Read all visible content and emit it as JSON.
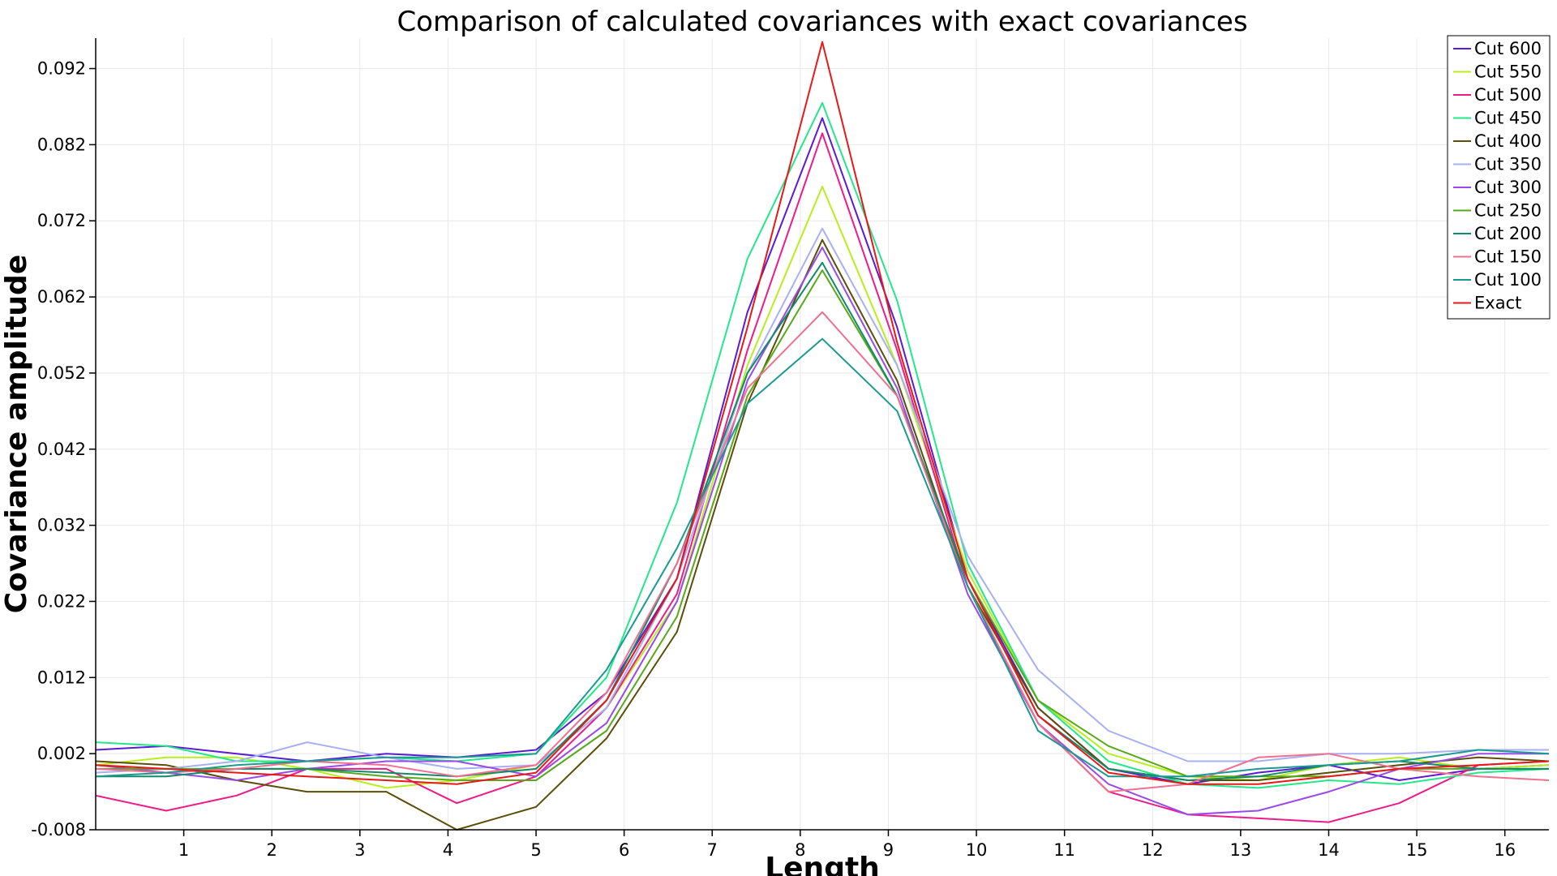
{
  "chart_data": {
    "type": "line",
    "title": "Comparison of calculated covariances with exact covariances",
    "xlabel": "Length",
    "ylabel": "Covariance amplitude",
    "xlim": [
      0,
      16.5
    ],
    "ylim": [
      -0.008,
      0.096
    ],
    "xticks": [
      1,
      2,
      3,
      4,
      5,
      6,
      7,
      8,
      9,
      10,
      11,
      12,
      13,
      14,
      15,
      16
    ],
    "yticks": [
      -0.008,
      0.002,
      0.012,
      0.022,
      0.032,
      0.042,
      0.052,
      0.062,
      0.072,
      0.082,
      0.092
    ],
    "ytick_labels": [
      "-0.008",
      "0.002",
      "0.012",
      "0.022",
      "0.032",
      "0.042",
      "0.052",
      "0.062",
      "0.072",
      "0.082",
      "0.092"
    ],
    "grid": true,
    "legend_position": "top-right",
    "series": [
      {
        "name": "Cut 600",
        "color": "#5a1ad6",
        "points": [
          [
            0,
            0.0025
          ],
          [
            0.8,
            0.003
          ],
          [
            1.6,
            0.002
          ],
          [
            2.4,
            0.001
          ],
          [
            3.3,
            0.002
          ],
          [
            4.1,
            0.0015
          ],
          [
            5.0,
            0.0025
          ],
          [
            5.8,
            0.01
          ],
          [
            6.6,
            0.025
          ],
          [
            7.4,
            0.06
          ],
          [
            8.25,
            0.0855
          ],
          [
            9.1,
            0.058
          ],
          [
            9.9,
            0.025
          ],
          [
            10.7,
            0.008
          ],
          [
            11.5,
            0.0
          ],
          [
            12.4,
            -0.002
          ],
          [
            13.2,
            -0.0005
          ],
          [
            14.0,
            0.0005
          ],
          [
            14.8,
            -0.0015
          ],
          [
            15.7,
            0.0
          ],
          [
            16.5,
            0.0005
          ]
        ]
      },
      {
        "name": "Cut 550",
        "color": "#b8ee1c",
        "points": [
          [
            0,
            0.0005
          ],
          [
            0.8,
            0.0015
          ],
          [
            1.6,
            0.0015
          ],
          [
            2.4,
            0.0
          ],
          [
            3.3,
            -0.0025
          ],
          [
            4.1,
            -0.0015
          ],
          [
            5.0,
            0.0005
          ],
          [
            5.8,
            0.008
          ],
          [
            6.6,
            0.022
          ],
          [
            7.4,
            0.053
          ],
          [
            8.25,
            0.0765
          ],
          [
            9.1,
            0.053
          ],
          [
            9.9,
            0.026
          ],
          [
            10.7,
            0.009
          ],
          [
            11.5,
            0.002
          ],
          [
            12.4,
            -0.001
          ],
          [
            13.2,
            -0.0015
          ],
          [
            14.0,
            0.0005
          ],
          [
            14.8,
            0.0015
          ],
          [
            15.7,
            0.0
          ],
          [
            16.5,
            0.0005
          ]
        ]
      },
      {
        "name": "Cut 500",
        "color": "#ee1a8a",
        "points": [
          [
            0,
            -0.0035
          ],
          [
            0.8,
            -0.0055
          ],
          [
            1.6,
            -0.0035
          ],
          [
            2.4,
            0.0
          ],
          [
            3.3,
            0.0
          ],
          [
            4.1,
            -0.0045
          ],
          [
            5.0,
            -0.001
          ],
          [
            5.8,
            0.008
          ],
          [
            6.6,
            0.023
          ],
          [
            7.4,
            0.055
          ],
          [
            8.25,
            0.0835
          ],
          [
            9.1,
            0.055
          ],
          [
            9.9,
            0.024
          ],
          [
            10.7,
            0.006
          ],
          [
            11.5,
            -0.003
          ],
          [
            12.4,
            -0.006
          ],
          [
            13.2,
            -0.0065
          ],
          [
            14.0,
            -0.007
          ],
          [
            14.8,
            -0.0045
          ],
          [
            15.7,
            0.0005
          ],
          [
            16.5,
            0.001
          ]
        ]
      },
      {
        "name": "Cut 450",
        "color": "#22e88a",
        "points": [
          [
            0,
            0.0035
          ],
          [
            0.8,
            0.003
          ],
          [
            1.6,
            0.001
          ],
          [
            2.4,
            0.001
          ],
          [
            3.3,
            0.0015
          ],
          [
            4.1,
            0.001
          ],
          [
            5.0,
            0.002
          ],
          [
            5.8,
            0.012
          ],
          [
            6.6,
            0.035
          ],
          [
            7.4,
            0.067
          ],
          [
            8.25,
            0.0875
          ],
          [
            9.1,
            0.0615
          ],
          [
            9.9,
            0.027
          ],
          [
            10.7,
            0.009
          ],
          [
            11.5,
            0.001
          ],
          [
            12.4,
            -0.002
          ],
          [
            13.2,
            -0.0025
          ],
          [
            14.0,
            -0.0015
          ],
          [
            14.8,
            -0.002
          ],
          [
            15.7,
            -0.0005
          ],
          [
            16.5,
            0.0
          ]
        ]
      },
      {
        "name": "Cut 400",
        "color": "#5a4e08",
        "points": [
          [
            0,
            0.001
          ],
          [
            0.8,
            0.0005
          ],
          [
            1.6,
            -0.0015
          ],
          [
            2.4,
            -0.003
          ],
          [
            3.3,
            -0.003
          ],
          [
            4.1,
            -0.008
          ],
          [
            5.0,
            -0.005
          ],
          [
            5.8,
            0.004
          ],
          [
            6.6,
            0.018
          ],
          [
            7.4,
            0.048
          ],
          [
            8.25,
            0.0695
          ],
          [
            9.1,
            0.051
          ],
          [
            9.9,
            0.024
          ],
          [
            10.7,
            0.008
          ],
          [
            11.5,
            0.0
          ],
          [
            12.4,
            -0.0015
          ],
          [
            13.2,
            -0.0015
          ],
          [
            14.0,
            -0.0005
          ],
          [
            14.8,
            0.0005
          ],
          [
            15.7,
            0.0015
          ],
          [
            16.5,
            0.001
          ]
        ]
      },
      {
        "name": "Cut 350",
        "color": "#a8b0f0",
        "points": [
          [
            0,
            -0.0005
          ],
          [
            0.8,
            0.0
          ],
          [
            1.6,
            0.001
          ],
          [
            2.4,
            0.0035
          ],
          [
            3.3,
            0.0015
          ],
          [
            4.1,
            0.0
          ],
          [
            5.0,
            0.0005
          ],
          [
            5.8,
            0.008
          ],
          [
            6.6,
            0.025
          ],
          [
            7.4,
            0.052
          ],
          [
            8.25,
            0.071
          ],
          [
            9.1,
            0.053
          ],
          [
            9.9,
            0.028
          ],
          [
            10.7,
            0.013
          ],
          [
            11.5,
            0.005
          ],
          [
            12.4,
            0.001
          ],
          [
            13.2,
            0.001
          ],
          [
            14.0,
            0.002
          ],
          [
            14.8,
            0.002
          ],
          [
            15.7,
            0.0025
          ],
          [
            16.5,
            0.0025
          ]
        ]
      },
      {
        "name": "Cut 300",
        "color": "#9a4ae8",
        "points": [
          [
            0,
            0.0005
          ],
          [
            0.8,
            -0.0005
          ],
          [
            1.6,
            -0.0015
          ],
          [
            2.4,
            0.0
          ],
          [
            3.3,
            0.001
          ],
          [
            4.1,
            0.001
          ],
          [
            5.0,
            -0.001
          ],
          [
            5.8,
            0.006
          ],
          [
            6.6,
            0.022
          ],
          [
            7.4,
            0.051
          ],
          [
            8.25,
            0.0685
          ],
          [
            9.1,
            0.05
          ],
          [
            9.9,
            0.023
          ],
          [
            10.7,
            0.006
          ],
          [
            11.5,
            -0.002
          ],
          [
            12.4,
            -0.006
          ],
          [
            13.2,
            -0.0055
          ],
          [
            14.0,
            -0.003
          ],
          [
            14.8,
            0.0
          ],
          [
            15.7,
            0.002
          ],
          [
            16.5,
            0.002
          ]
        ]
      },
      {
        "name": "Cut 250",
        "color": "#58a818",
        "points": [
          [
            0,
            0.0
          ],
          [
            0.8,
            0.0
          ],
          [
            1.6,
            0.0
          ],
          [
            2.4,
            0.0
          ],
          [
            3.3,
            -0.001
          ],
          [
            4.1,
            -0.0015
          ],
          [
            5.0,
            -0.0015
          ],
          [
            5.8,
            0.005
          ],
          [
            6.6,
            0.02
          ],
          [
            7.4,
            0.049
          ],
          [
            8.25,
            0.0655
          ],
          [
            9.1,
            0.049
          ],
          [
            9.9,
            0.025
          ],
          [
            10.7,
            0.009
          ],
          [
            11.5,
            0.003
          ],
          [
            12.4,
            -0.001
          ],
          [
            13.2,
            -0.001
          ],
          [
            14.0,
            -0.001
          ],
          [
            14.8,
            0.0
          ],
          [
            15.7,
            0.0
          ],
          [
            16.5,
            0.0
          ]
        ]
      },
      {
        "name": "Cut 200",
        "color": "#108a6a",
        "points": [
          [
            0,
            -0.001
          ],
          [
            0.8,
            -0.001
          ],
          [
            1.6,
            0.0
          ],
          [
            2.4,
            0.0
          ],
          [
            3.3,
            -0.0005
          ],
          [
            4.1,
            -0.001
          ],
          [
            5.0,
            0.0
          ],
          [
            5.8,
            0.009
          ],
          [
            6.6,
            0.027
          ],
          [
            7.4,
            0.052
          ],
          [
            8.25,
            0.0665
          ],
          [
            9.1,
            0.049
          ],
          [
            9.9,
            0.025
          ],
          [
            10.7,
            0.007
          ],
          [
            11.5,
            0.0
          ],
          [
            12.4,
            -0.0015
          ],
          [
            13.2,
            -0.001
          ],
          [
            14.0,
            0.0005
          ],
          [
            14.8,
            0.001
          ],
          [
            15.7,
            0.0
          ],
          [
            16.5,
            0.0
          ]
        ]
      },
      {
        "name": "Cut 150",
        "color": "#f07090",
        "points": [
          [
            0,
            0.0
          ],
          [
            0.8,
            -0.0005
          ],
          [
            1.6,
            0.0
          ],
          [
            2.4,
            0.001
          ],
          [
            3.3,
            0.0005
          ],
          [
            4.1,
            -0.001
          ],
          [
            5.0,
            0.0005
          ],
          [
            5.8,
            0.01
          ],
          [
            6.6,
            0.027
          ],
          [
            7.4,
            0.05
          ],
          [
            8.25,
            0.06
          ],
          [
            9.1,
            0.049
          ],
          [
            9.9,
            0.024
          ],
          [
            10.7,
            0.006
          ],
          [
            11.5,
            -0.003
          ],
          [
            12.4,
            -0.002
          ],
          [
            13.2,
            0.0015
          ],
          [
            14.0,
            0.002
          ],
          [
            14.8,
            0.0
          ],
          [
            15.7,
            -0.001
          ],
          [
            16.5,
            -0.0015
          ]
        ]
      },
      {
        "name": "Cut 100",
        "color": "#1a9a90",
        "points": [
          [
            0,
            -0.001
          ],
          [
            0.8,
            -0.0005
          ],
          [
            1.6,
            0.0005
          ],
          [
            2.4,
            0.001
          ],
          [
            3.3,
            0.0015
          ],
          [
            4.1,
            0.0015
          ],
          [
            5.0,
            0.002
          ],
          [
            5.8,
            0.013
          ],
          [
            6.6,
            0.029
          ],
          [
            7.4,
            0.048
          ],
          [
            8.25,
            0.0565
          ],
          [
            9.1,
            0.047
          ],
          [
            9.9,
            0.024
          ],
          [
            10.7,
            0.005
          ],
          [
            11.5,
            -0.001
          ],
          [
            12.4,
            -0.001
          ],
          [
            13.2,
            0.0
          ],
          [
            14.0,
            0.0005
          ],
          [
            14.8,
            0.001
          ],
          [
            15.7,
            0.0025
          ],
          [
            16.5,
            0.002
          ]
        ]
      },
      {
        "name": "Exact",
        "color": "#e81818",
        "points": [
          [
            0,
            0.0005
          ],
          [
            0.8,
            0.0
          ],
          [
            1.6,
            -0.0005
          ],
          [
            2.4,
            -0.001
          ],
          [
            3.3,
            -0.0015
          ],
          [
            4.1,
            -0.002
          ],
          [
            5.0,
            -0.0005
          ],
          [
            5.8,
            0.009
          ],
          [
            6.6,
            0.025
          ],
          [
            7.4,
            0.058
          ],
          [
            8.25,
            0.0955
          ],
          [
            9.1,
            0.056
          ],
          [
            9.9,
            0.025
          ],
          [
            10.7,
            0.007
          ],
          [
            11.5,
            -0.0005
          ],
          [
            12.4,
            -0.002
          ],
          [
            13.2,
            -0.002
          ],
          [
            14.0,
            -0.001
          ],
          [
            14.8,
            0.0
          ],
          [
            15.7,
            0.0005
          ],
          [
            16.5,
            0.001
          ]
        ]
      }
    ]
  }
}
